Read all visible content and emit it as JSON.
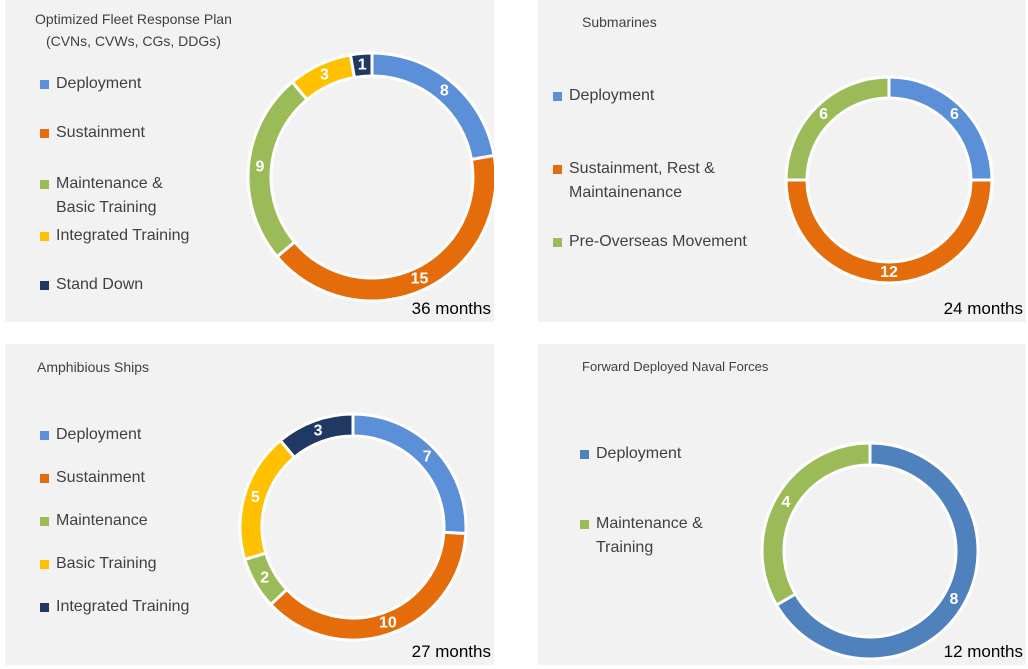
{
  "chart_data": [
    {
      "type": "donut",
      "title": "Optimized Fleet Response Plan\n(CVNs, CVWs, CGs, DDGs)",
      "categories": [
        "Deployment",
        "Sustainment",
        "Maintenance &\nBasic Training",
        "Integrated Training",
        "Stand Down"
      ],
      "values": [
        8,
        15,
        9,
        3,
        1
      ],
      "colors": [
        "#5b8fd8",
        "#e46c0a",
        "#9bbb59",
        "#ffc000",
        "#1f3864"
      ],
      "note": "36 months"
    },
    {
      "type": "donut",
      "title": "Submarines",
      "categories": [
        "Deployment",
        "Sustainment, Rest &\nMaintainenance",
        "Pre-Overseas Movement"
      ],
      "values": [
        6,
        12,
        6
      ],
      "colors": [
        "#5b8fd8",
        "#e46c0a",
        "#9bbb59"
      ],
      "note": "24 months"
    },
    {
      "type": "donut",
      "title": "Amphibious Ships",
      "categories": [
        "Deployment",
        "Sustainment",
        "Maintenance",
        "Basic Training",
        "Integrated Training"
      ],
      "values": [
        7,
        10,
        2,
        5,
        3
      ],
      "colors": [
        "#5b8fd8",
        "#e46c0a",
        "#9bbb59",
        "#ffc000",
        "#1f3864"
      ],
      "note": "27 months"
    },
    {
      "type": "donut",
      "title": "Forward Deployed Naval Forces",
      "categories": [
        "Deployment",
        "Maintenance &\nTraining"
      ],
      "values": [
        8,
        4
      ],
      "colors": [
        "#4f81bd",
        "#9bbb59"
      ],
      "note": "12 months"
    }
  ]
}
